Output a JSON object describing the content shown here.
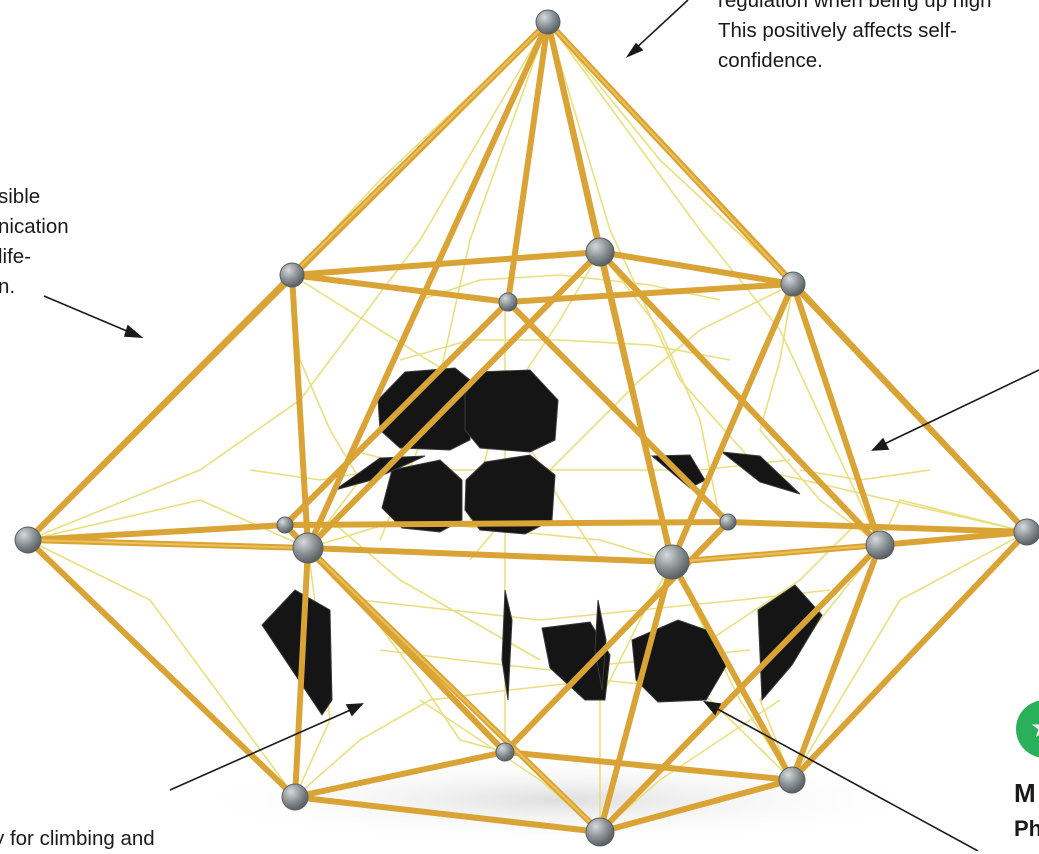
{
  "annotations": {
    "top_right": [
      "regulation when being up high",
      "This positively affects self-",
      "confidence."
    ],
    "left": [
      "sible",
      "nication",
      "life-",
      "n."
    ],
    "bottom_left": "y for climbing and",
    "bottom_right": [
      "M",
      "Ph"
    ]
  },
  "icon": {
    "name": "person-activity-icon",
    "glyph": "★",
    "color": "#2ab05a"
  },
  "colors": {
    "frame_tube": "#d9a336",
    "frame_tube_highlight": "#f0c860",
    "net_rope": "#e8de78",
    "joint_ball": "#8c9396",
    "panel": "#151515"
  }
}
